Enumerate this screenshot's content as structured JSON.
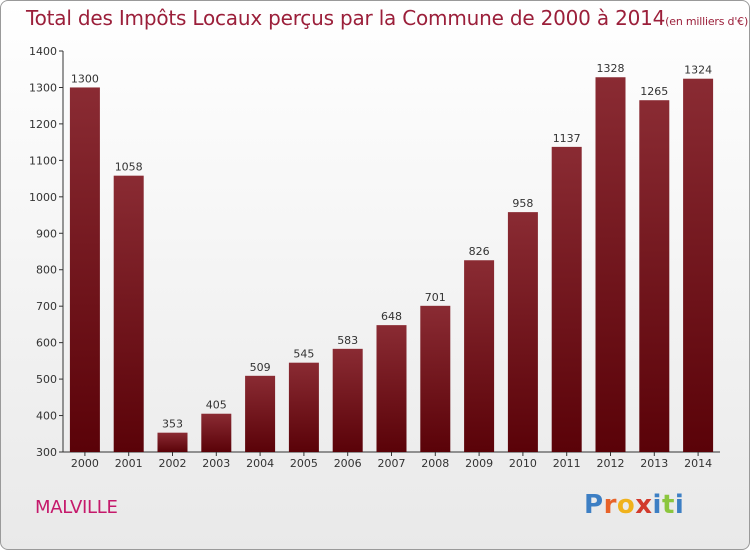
{
  "title": "Total des Impôts Locaux perçus par la Commune de 2000 à 2014",
  "title_unit": "(en milliers d'€)",
  "commune": "MALVILLE",
  "logo": {
    "text": "Proxiti",
    "letters": [
      "P",
      "r",
      "o",
      "x",
      "i",
      "t",
      "i"
    ],
    "colors": [
      "#3d7fc4",
      "#e8632a",
      "#f0b21c",
      "#d23a2c",
      "#3d7fc4",
      "#8cc63e",
      "#3d7fc4"
    ]
  },
  "colors": {
    "bar_top": "#8a2b33",
    "bar_bottom": "#5a0208",
    "text": "#9b1f3a"
  },
  "chart_data": {
    "type": "bar",
    "title": "Total des Impôts Locaux perçus par la Commune de 2000 à 2014",
    "unit": "(en milliers d'€)",
    "categories": [
      "2000",
      "2001",
      "2002",
      "2003",
      "2004",
      "2005",
      "2006",
      "2007",
      "2008",
      "2009",
      "2010",
      "2011",
      "2012",
      "2013",
      "2014"
    ],
    "values": [
      1300,
      1058,
      353,
      405,
      509,
      545,
      583,
      648,
      701,
      826,
      958,
      1137,
      1328,
      1265,
      1324
    ],
    "yticks": [
      300,
      400,
      500,
      600,
      700,
      800,
      900,
      1000,
      1100,
      1200,
      1300,
      1400
    ],
    "ylim": [
      300,
      1400
    ],
    "grid": false,
    "xlabel": "",
    "ylabel": ""
  }
}
